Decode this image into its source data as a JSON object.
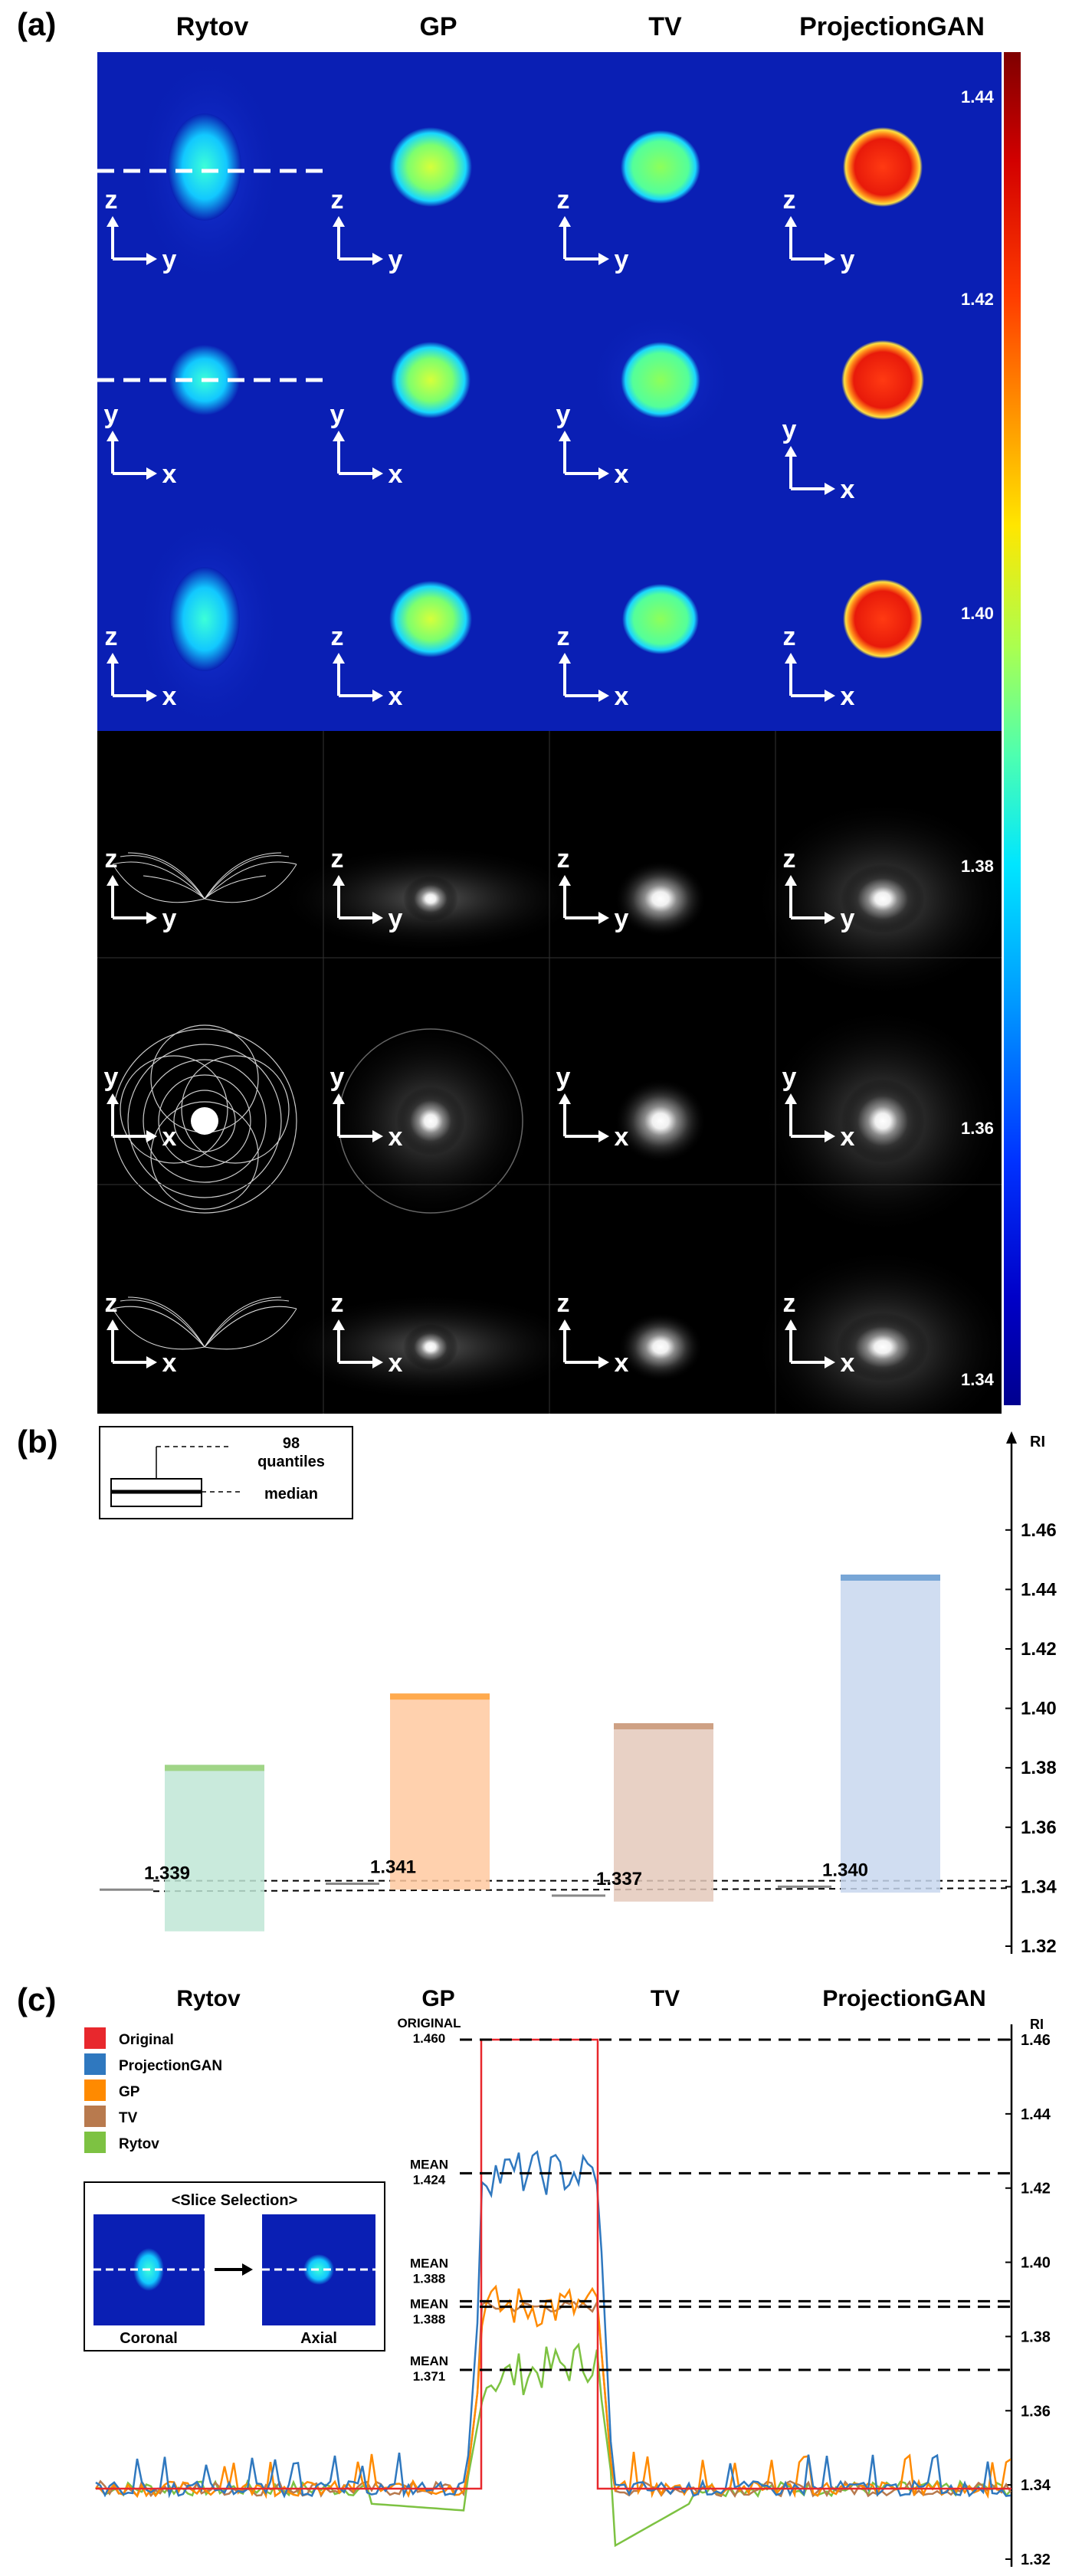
{
  "panels": {
    "a": "(a)",
    "b": "(b)",
    "c": "(c)"
  },
  "columns": [
    "Rytov",
    "GP",
    "TV",
    "ProjectionGAN"
  ],
  "colorbar": {
    "ticks": [
      "1.44",
      "1.42",
      "1.40",
      "1.38",
      "1.36",
      "1.34"
    ]
  },
  "axes_pairs": {
    "rows": [
      [
        "z",
        "y"
      ],
      [
        "y",
        "x"
      ],
      [
        "z",
        "x"
      ],
      [
        "z",
        "y"
      ],
      [
        "y",
        "x"
      ],
      [
        "z",
        "x"
      ]
    ]
  },
  "colors": {
    "Original": "#e8282d",
    "ProjectionGAN": "#2f78bf",
    "GP": "#ff8a00",
    "TV": "#b87a4e",
    "Rytov": "#7dc242",
    "field_blue": "#0a1fb4"
  },
  "panel_b": {
    "legend": {
      "q": "98\nquantiles",
      "median": "median"
    },
    "axis_label": "RI",
    "median_labels": [
      "1.339",
      "1.341",
      "1.337",
      "1.340"
    ]
  },
  "panel_c": {
    "legend_series": [
      "Original",
      "ProjectionGAN",
      "GP",
      "TV",
      "Rytov"
    ],
    "slice_selection": {
      "title": "<Slice Selection>",
      "left": "Coronal",
      "right": "Axial"
    },
    "axis_label": "RI",
    "annotations": [
      {
        "line1": "ORIGINAL",
        "line2": "1.460"
      },
      {
        "line1": "MEAN",
        "line2": "1.424"
      },
      {
        "line1": "MEAN",
        "line2": "1.388"
      },
      {
        "line1": "MEAN",
        "line2": "1.388"
      },
      {
        "line1": "MEAN",
        "line2": "1.371"
      }
    ]
  },
  "chart_data": [
    {
      "type": "box",
      "title": "",
      "ylabel": "RI",
      "ylim": [
        1.32,
        1.47
      ],
      "yticks": [
        1.32,
        1.34,
        1.36,
        1.38,
        1.4,
        1.42,
        1.44,
        1.46
      ],
      "categories": [
        "Rytov",
        "GP",
        "TV",
        "ProjectionGAN"
      ],
      "series": [
        {
          "name": "Rytov",
          "median": 1.339,
          "q01": 1.325,
          "q99": 1.381
        },
        {
          "name": "GP",
          "median": 1.341,
          "q01": 1.339,
          "q99": 1.405
        },
        {
          "name": "TV",
          "median": 1.337,
          "q01": 1.335,
          "q99": 1.395
        },
        {
          "name": "ProjectionGAN",
          "median": 1.34,
          "q01": 1.338,
          "q99": 1.445
        }
      ]
    },
    {
      "type": "line",
      "title": "",
      "ylabel": "RI",
      "ylim": [
        1.32,
        1.46
      ],
      "yticks": [
        1.32,
        1.34,
        1.36,
        1.38,
        1.4,
        1.42,
        1.44,
        1.46
      ],
      "series": [
        {
          "name": "Original",
          "mean": 1.46
        },
        {
          "name": "ProjectionGAN",
          "mean": 1.424
        },
        {
          "name": "GP",
          "mean": 1.388
        },
        {
          "name": "TV",
          "mean": 1.388
        },
        {
          "name": "Rytov",
          "mean": 1.371
        }
      ]
    }
  ]
}
